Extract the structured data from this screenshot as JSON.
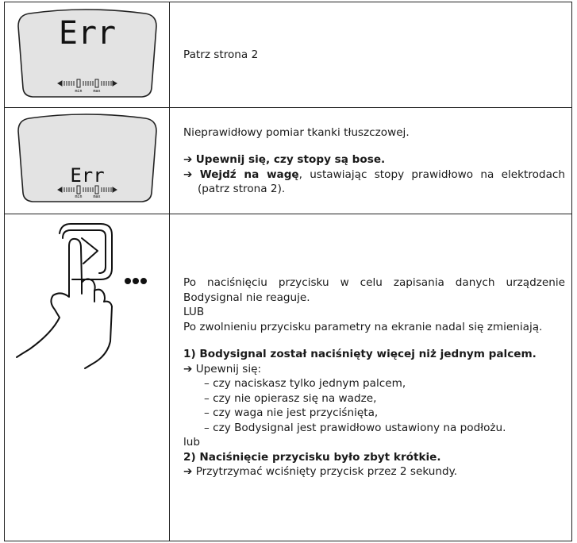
{
  "table": {
    "rows": [
      {
        "display": {
          "reading": "Err",
          "min": "min",
          "max": "max"
        },
        "text": [
          {
            "kind": "p",
            "parts": [
              {
                "text": "Patrz strona 2"
              }
            ]
          }
        ]
      },
      {
        "display": {
          "reading": "Err",
          "min": "min",
          "max": "max"
        },
        "text": [
          {
            "kind": "p",
            "parts": [
              {
                "text": "Nieprawidłowy pomiar tkanki tłuszczowej."
              }
            ]
          },
          {
            "kind": "arrow",
            "parts": [
              {
                "text": "➔ "
              },
              {
                "text": "Upewnij się, czy stopy są bose.",
                "bold": true
              }
            ]
          },
          {
            "kind": "arrow",
            "parts": [
              {
                "text": "➔ "
              },
              {
                "text": "Wejdź na wagę",
                "bold": true
              },
              {
                "text": ", ustawiając stopy prawidłowo na elektrodach (patrz strona 2)."
              }
            ]
          }
        ]
      },
      {
        "text": [
          {
            "kind": "p",
            "parts": [
              {
                "text": "Po naciśnięciu przycisku w celu zapisania danych urządzenie Bodysignal nie reaguje."
              }
            ]
          },
          {
            "kind": "or",
            "parts": [
              {
                "text": "LUB"
              }
            ]
          },
          {
            "kind": "p",
            "parts": [
              {
                "text": "Po zwolnieniu przycisku parametry na ekranie nadal się zmieniają."
              }
            ]
          },
          {
            "kind": "heading",
            "parts": [
              {
                "text": "1) Bodysignal został naciśnięty więcej niż jednym palcem."
              }
            ]
          },
          {
            "kind": "arrow",
            "parts": [
              {
                "text": "➔ Upewnij się:"
              }
            ]
          },
          {
            "kind": "dash",
            "parts": [
              {
                "text": "– czy naciskasz tylko jednym palcem,"
              }
            ]
          },
          {
            "kind": "dash",
            "parts": [
              {
                "text": "– czy nie opierasz się na wadze,"
              }
            ]
          },
          {
            "kind": "dash",
            "parts": [
              {
                "text": "– czy waga nie jest przyciśnięta,"
              }
            ]
          },
          {
            "kind": "dash",
            "parts": [
              {
                "text": "– czy Bodysignal jest prawidłowo ustawiony na podłożu."
              }
            ]
          },
          {
            "kind": "or",
            "parts": [
              {
                "text": "lub"
              }
            ]
          },
          {
            "kind": "heading",
            "parts": [
              {
                "text": "2) Naciśnięcie przycisku było zbyt krótkie."
              }
            ]
          },
          {
            "kind": "arrow",
            "parts": [
              {
                "text": "➔ Przytrzymać wciśnięty przycisk przez 2 sekundy."
              }
            ]
          }
        ]
      }
    ]
  }
}
